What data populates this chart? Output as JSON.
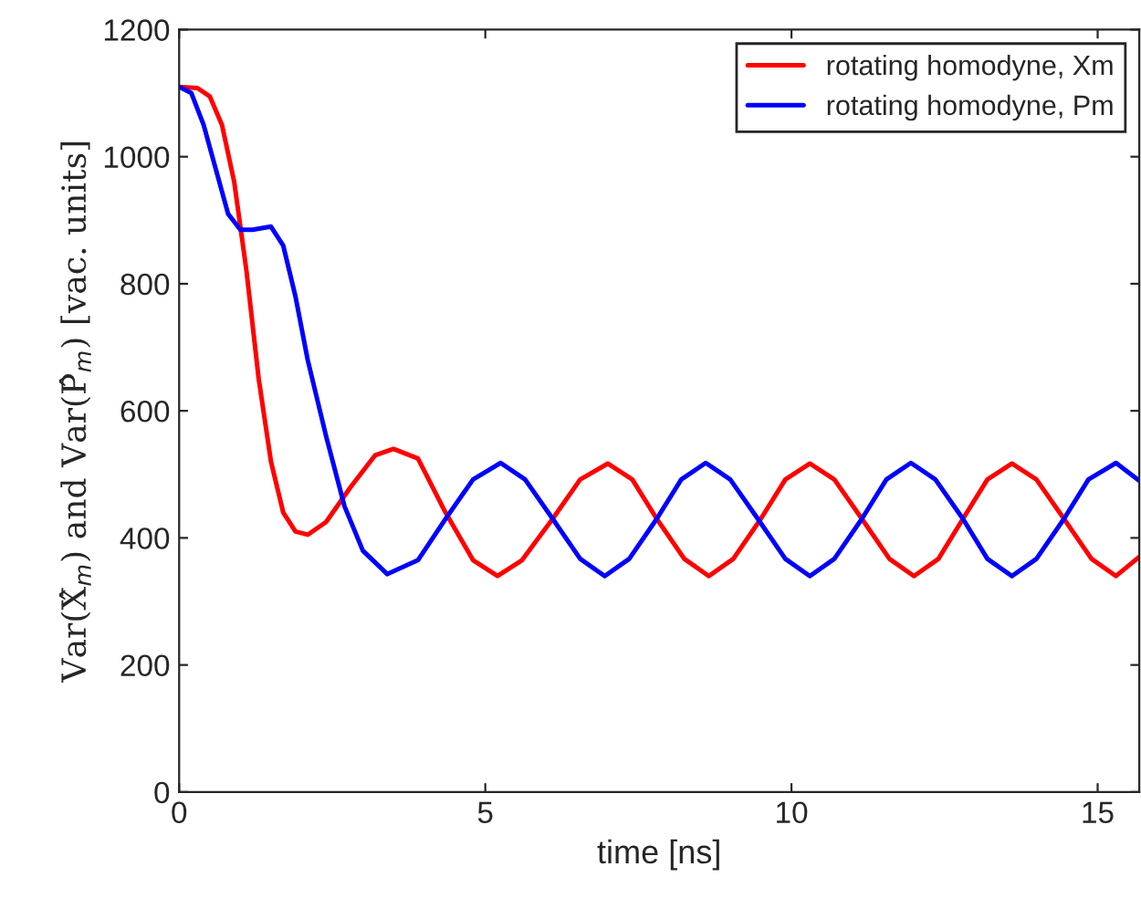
{
  "chart_data": {
    "type": "line",
    "xlabel": "time [ns]",
    "ylabel": "Var(X̂$_{m}$) and Var(P̂$_{m}$) [vac. units]",
    "xlim": [
      0,
      15.68
    ],
    "xticks": [
      0,
      5,
      10,
      15
    ],
    "ylim": [
      0,
      1200
    ],
    "yticks": [
      0,
      200,
      400,
      600,
      800,
      1000,
      1200
    ],
    "grid": false,
    "legend": "top right",
    "line_style": "solid",
    "marker": "none",
    "series": [
      {
        "name": "rotating homodyne, Xm",
        "color": "#ff0000",
        "x": [
          0,
          0.3,
          0.5,
          0.7,
          0.9,
          1.1,
          1.3,
          1.5,
          1.7,
          1.9,
          2.1,
          2.4,
          2.8,
          3.2,
          3.5,
          3.9,
          4.35,
          4.8,
          5.2,
          5.6,
          6.1,
          6.55,
          7.0,
          7.4,
          7.8,
          8.25,
          8.65,
          9.05,
          9.5,
          9.9,
          10.3,
          10.7,
          11.15,
          11.6,
          12.0,
          12.4,
          12.8,
          13.2,
          13.6,
          14.0,
          14.45,
          14.9,
          15.3,
          15.68
        ],
        "values": [
          1110,
          1108,
          1095,
          1050,
          960,
          820,
          650,
          520,
          440,
          410,
          405,
          425,
          480,
          530,
          540,
          525,
          440,
          365,
          340,
          365,
          430,
          492,
          517,
          492,
          430,
          367,
          340,
          367,
          430,
          492,
          517,
          492,
          430,
          367,
          340,
          367,
          430,
          492,
          517,
          492,
          430,
          367,
          340,
          370
        ]
      },
      {
        "name": "rotating homodyne, Pm",
        "color": "#0000ff",
        "x": [
          0,
          0.2,
          0.4,
          0.6,
          0.8,
          1.0,
          1.2,
          1.5,
          1.7,
          1.9,
          2.1,
          2.4,
          2.7,
          3.0,
          3.4,
          3.9,
          4.35,
          4.8,
          5.25,
          5.65,
          6.1,
          6.55,
          6.95,
          7.35,
          7.8,
          8.2,
          8.6,
          9.0,
          9.45,
          9.9,
          10.3,
          10.7,
          11.15,
          11.55,
          11.95,
          12.35,
          12.8,
          13.2,
          13.6,
          14.0,
          14.45,
          14.85,
          15.3,
          15.68
        ],
        "values": [
          1110,
          1100,
          1050,
          980,
          910,
          885,
          885,
          890,
          860,
          780,
          680,
          560,
          450,
          380,
          343,
          365,
          430,
          492,
          518,
          492,
          430,
          367,
          340,
          367,
          430,
          492,
          518,
          492,
          430,
          367,
          340,
          367,
          430,
          492,
          518,
          492,
          430,
          367,
          340,
          367,
          430,
          492,
          518,
          490
        ]
      }
    ]
  }
}
